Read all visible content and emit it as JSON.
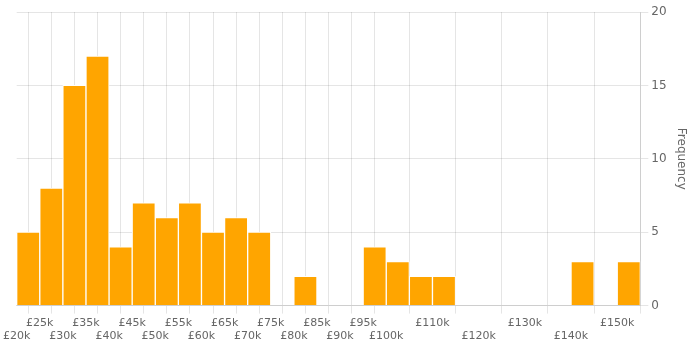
{
  "chart_data": {
    "type": "histogram",
    "bins": [
      20000,
      25000,
      30000,
      35000,
      40000,
      45000,
      50000,
      55000,
      60000,
      65000,
      70000,
      75000,
      80000,
      85000,
      90000,
      95000,
      100000,
      105000,
      110000,
      115000,
      120000,
      125000,
      130000,
      135000,
      140000,
      145000,
      150000,
      155000
    ],
    "values": [
      5,
      8,
      15,
      17,
      4,
      7,
      6,
      7,
      5,
      6,
      5,
      0,
      2,
      0,
      0,
      4,
      3,
      2,
      2,
      0,
      0,
      0,
      0,
      0,
      3,
      0,
      3
    ],
    "color": "#FFA500",
    "ylabel": "Frequency",
    "xlim": [
      20000,
      155000
    ],
    "xticks": [
      {
        "value": 20000,
        "label": "£20k"
      },
      {
        "value": 25000,
        "label": "£25k"
      },
      {
        "value": 30000,
        "label": "£30k"
      },
      {
        "value": 35000,
        "label": "£35k"
      },
      {
        "value": 40000,
        "label": "£40k"
      },
      {
        "value": 45000,
        "label": "£45k"
      },
      {
        "value": 50000,
        "label": "£50k"
      },
      {
        "value": 55000,
        "label": "£55k"
      },
      {
        "value": 60000,
        "label": "£60k"
      },
      {
        "value": 65000,
        "label": "£65k"
      },
      {
        "value": 70000,
        "label": "£70k"
      },
      {
        "value": 75000,
        "label": "£75k"
      },
      {
        "value": 80000,
        "label": "£80k"
      },
      {
        "value": 85000,
        "label": "£85k"
      },
      {
        "value": 90000,
        "label": "£90k"
      },
      {
        "value": 95000,
        "label": "£95k"
      },
      {
        "value": 100000,
        "label": "£100k"
      },
      {
        "value": 110000,
        "label": "£110k"
      },
      {
        "value": 120000,
        "label": "£120k"
      },
      {
        "value": 130000,
        "label": "£130k"
      },
      {
        "value": 140000,
        "label": "£140k"
      },
      {
        "value": 150000,
        "label": "£150k"
      }
    ],
    "ylim": [
      0,
      20
    ],
    "yticks": [
      0,
      5,
      10,
      15,
      20
    ],
    "grid": true
  }
}
